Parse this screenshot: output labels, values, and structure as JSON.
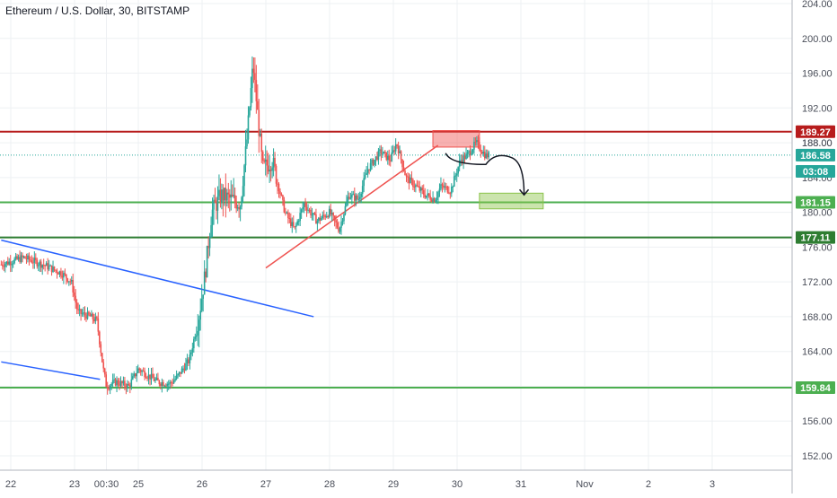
{
  "chart_data": {
    "type": "candlestick",
    "title": "Ethereum / U.S. Dollar, 30, BITSTAMP",
    "ylim": [
      149,
      205
    ],
    "y_ticks": [
      "152.00",
      "156.00",
      "160.00",
      "164.00",
      "168.00",
      "172.00",
      "176.00",
      "180.00",
      "184.00",
      "188.00",
      "192.00",
      "196.00",
      "200.00",
      "204.00"
    ],
    "x_ticks": [
      {
        "label": "22",
        "day": 0
      },
      {
        "label": "23",
        "day": 1
      },
      {
        "label": "00:30",
        "day": 1.5
      },
      {
        "label": "25",
        "day": 2
      },
      {
        "label": "26",
        "day": 3
      },
      {
        "label": "27",
        "day": 4
      },
      {
        "label": "28",
        "day": 5
      },
      {
        "label": "29",
        "day": 6
      },
      {
        "label": "30",
        "day": 7
      },
      {
        "label": "31",
        "day": 8
      },
      {
        "label": "Nov",
        "day": 9
      },
      {
        "label": "2",
        "day": 10
      },
      {
        "label": "3",
        "day": 11
      }
    ],
    "grid": true,
    "colors": {
      "up": "#26a69a",
      "down": "#ef5350",
      "support": "#4caf50",
      "resistance": "#b71c1c",
      "trend": "#2962ff",
      "wedge": "#ef5350",
      "last": "#26a69a"
    },
    "price_tags": [
      {
        "label": "189.27",
        "value": 189.27,
        "color": "#b71c1c"
      },
      {
        "label": "188.00",
        "value": 188.0,
        "color": "none"
      },
      {
        "label": "186.58",
        "value": 186.58,
        "color": "#26a69a"
      },
      {
        "label": "03:08",
        "value": 184.7,
        "color": "#26a69a"
      },
      {
        "label": "181.15",
        "value": 181.15,
        "color": "#4caf50"
      },
      {
        "label": "177.11",
        "value": 177.11,
        "color": "#2e7d32"
      },
      {
        "label": "159.84",
        "value": 159.84,
        "color": "#4caf50"
      }
    ],
    "horizontal_levels": [
      {
        "name": "resistance",
        "value": 189.27,
        "color": "#b71c1c"
      },
      {
        "name": "support",
        "value": 181.15,
        "color": "#4caf50"
      },
      {
        "name": "support",
        "value": 177.11,
        "color": "#2e7d32"
      },
      {
        "name": "support",
        "value": 159.84,
        "color": "#4caf50"
      },
      {
        "name": "last-price",
        "value": 186.58,
        "color": "#26a69a",
        "dotted": true
      }
    ],
    "trendlines": [
      {
        "from": [
          -0.15,
          176.8
        ],
        "to": [
          4.75,
          168.0
        ],
        "color": "#2962ff"
      },
      {
        "from": [
          -0.15,
          162.8
        ],
        "to": [
          1.4,
          160.8
        ],
        "color": "#2962ff"
      },
      {
        "from": [
          4.0,
          173.6
        ],
        "to": [
          6.7,
          187.7
        ],
        "color": "#ef5350"
      }
    ],
    "zones": [
      {
        "from": [
          6.62,
          189.4
        ],
        "to": [
          7.35,
          187.5
        ],
        "color": "#ef5350"
      },
      {
        "from": [
          7.35,
          182.2
        ],
        "to": [
          8.35,
          180.4
        ],
        "color": "#8bc34a"
      }
    ],
    "projection": {
      "points": [
        [
          6.82,
          186.8
        ],
        [
          6.9,
          185.5
        ],
        [
          7.45,
          185.5
        ],
        [
          7.6,
          187.0
        ],
        [
          7.85,
          186.3
        ],
        [
          8.05,
          182.0
        ]
      ],
      "color": "#131722"
    },
    "ohlc_anchors": [
      [
        -0.15,
        174.0
      ],
      [
        0.2,
        174.8
      ],
      [
        0.5,
        174.0
      ],
      [
        0.8,
        173.0
      ],
      [
        0.95,
        172.0
      ],
      [
        1.05,
        168.5
      ],
      [
        1.25,
        168.0
      ],
      [
        1.35,
        167.5
      ],
      [
        1.45,
        162.0
      ],
      [
        1.5,
        160.0
      ],
      [
        1.65,
        160.5
      ],
      [
        1.85,
        160.0
      ],
      [
        2.0,
        162.0
      ],
      [
        2.3,
        160.5
      ],
      [
        2.5,
        160.3
      ],
      [
        2.6,
        161.0
      ],
      [
        2.8,
        163.0
      ],
      [
        2.95,
        168.0
      ],
      [
        3.05,
        173.0
      ],
      [
        3.15,
        180.0
      ],
      [
        3.3,
        182.0
      ],
      [
        3.6,
        181.0
      ],
      [
        3.7,
        188.0
      ],
      [
        3.8,
        197.0
      ],
      [
        3.95,
        185.0
      ],
      [
        4.1,
        186.0
      ],
      [
        4.3,
        180.0
      ],
      [
        4.45,
        178.0
      ],
      [
        4.6,
        181.0
      ],
      [
        4.8,
        179.0
      ],
      [
        5.0,
        180.0
      ],
      [
        5.15,
        178.0
      ],
      [
        5.3,
        182.0
      ],
      [
        5.45,
        181.5
      ],
      [
        5.6,
        185.0
      ],
      [
        5.8,
        187.0
      ],
      [
        5.95,
        186.0
      ],
      [
        6.05,
        188.0
      ],
      [
        6.2,
        184.0
      ],
      [
        6.35,
        183.0
      ],
      [
        6.5,
        182.0
      ],
      [
        6.65,
        181.5
      ],
      [
        6.75,
        183.0
      ],
      [
        6.9,
        182.5
      ],
      [
        7.05,
        186.0
      ],
      [
        7.15,
        186.5
      ],
      [
        7.3,
        188.0
      ],
      [
        7.45,
        186.5
      ],
      [
        7.5,
        186.58
      ]
    ]
  }
}
